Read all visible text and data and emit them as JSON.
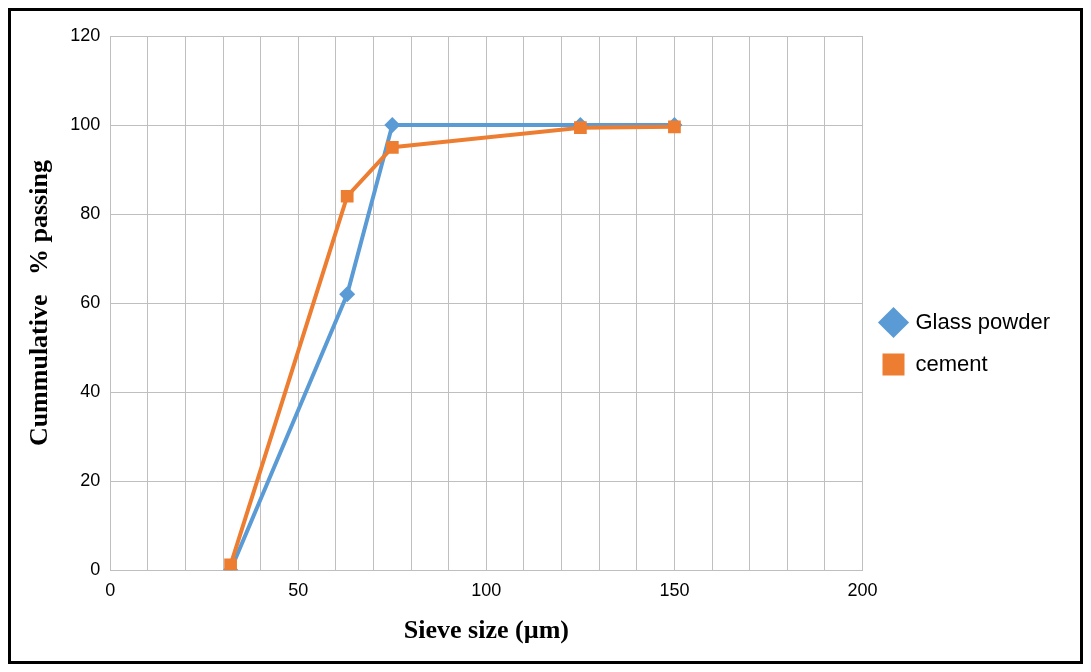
{
  "chart_data": {
    "type": "line",
    "xlabel": "Sieve size (µm)",
    "ylabel": "Cummulative   % passing",
    "xlim": [
      0,
      200
    ],
    "ylim": [
      0,
      120
    ],
    "xticks": [
      0,
      {
        "value": 10,
        "label": null
      },
      {
        "value": 20,
        "label": null
      },
      {
        "value": 30,
        "label": null
      },
      {
        "value": 40,
        "label": null
      },
      50,
      {
        "value": 60,
        "label": null
      },
      {
        "value": 70,
        "label": null
      },
      {
        "value": 80,
        "label": null
      },
      {
        "value": 90,
        "label": null
      },
      100,
      {
        "value": 110,
        "label": null
      },
      {
        "value": 120,
        "label": null
      },
      {
        "value": 130,
        "label": null
      },
      {
        "value": 140,
        "label": null
      },
      150,
      {
        "value": 160,
        "label": null
      },
      {
        "value": 170,
        "label": null
      },
      {
        "value": 180,
        "label": null
      },
      {
        "value": 190,
        "label": null
      },
      200
    ],
    "yticks": [
      0,
      20,
      40,
      60,
      80,
      100,
      120
    ],
    "grid": true,
    "legend": "right",
    "line_style": "solid",
    "series": [
      {
        "name": "Glass powder",
        "color": "#5b9bd5",
        "marker": "diamond",
        "x": [
          32,
          63,
          75,
          125,
          150
        ],
        "values": [
          0,
          62,
          100,
          100,
          100
        ]
      },
      {
        "name": "cement",
        "color": "#ed7d31",
        "marker": "square",
        "x": [
          32,
          63,
          75,
          125,
          150
        ],
        "values": [
          1.2,
          84,
          95,
          99.4,
          99.6
        ]
      }
    ]
  }
}
